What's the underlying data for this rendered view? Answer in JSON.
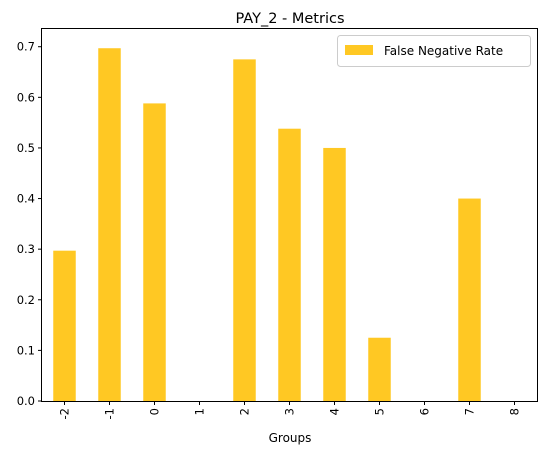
{
  "chart_data": {
    "type": "bar",
    "title": "PAY_2 - Metrics",
    "xlabel": "Groups",
    "ylabel": "",
    "categories": [
      "-2",
      "-1",
      "0",
      "1",
      "2",
      "3",
      "4",
      "5",
      "6",
      "7",
      "8"
    ],
    "series": [
      {
        "name": "False Negative Rate",
        "color": "#FFC823",
        "values": [
          0.297,
          0.697,
          0.588,
          0,
          0.675,
          0.538,
          0.5,
          0.125,
          0,
          0.4,
          0
        ]
      }
    ],
    "ylim": [
      0,
      0.735
    ],
    "yticks": [
      0.0,
      0.1,
      0.2,
      0.3,
      0.4,
      0.5,
      0.6,
      0.7
    ],
    "ytick_labels": [
      "0.0",
      "0.1",
      "0.2",
      "0.3",
      "0.4",
      "0.5",
      "0.6",
      "0.7"
    ],
    "legend_position": "top-right",
    "grid": false
  }
}
